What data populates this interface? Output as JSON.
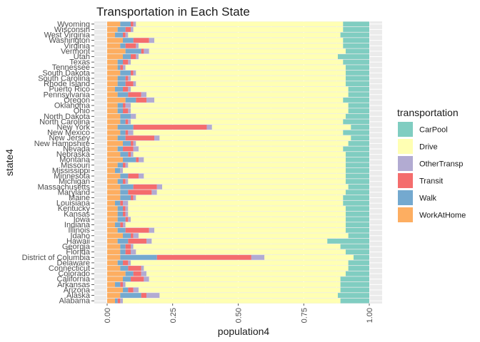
{
  "chart_data": {
    "type": "bar",
    "orientation": "horizontal",
    "stacked": "fill",
    "title": "Transportation in Each State",
    "xlabel": "population4",
    "ylabel": "state4",
    "xlim": [
      0,
      1
    ],
    "x_ticks": [
      "0.00",
      "0.25",
      "0.50",
      "0.75",
      "1.00"
    ],
    "grid": true,
    "legend_position": "right",
    "legend_title": "transportation",
    "stack_order": [
      "WorkAtHome",
      "Walk",
      "Transit",
      "OtherTransp",
      "Drive",
      "CarPool"
    ],
    "categories": [
      "Alabama",
      "Alaska",
      "Arizona",
      "Arkansas",
      "California",
      "Colorado",
      "Connecticut",
      "Delaware",
      "District of Columbia",
      "Florida",
      "Georgia",
      "Hawaii",
      "Idaho",
      "Illinois",
      "Indiana",
      "Iowa",
      "Kansas",
      "Kentucky",
      "Louisiana",
      "Maine",
      "Maryland",
      "Massachusetts",
      "Michigan",
      "Minnesota",
      "Mississippi",
      "Missouri",
      "Montana",
      "Nebraska",
      "Nevada",
      "New Hampshire",
      "New Jersey",
      "New Mexico",
      "New York",
      "North Carolina",
      "North Dakota",
      "Ohio",
      "Oklahoma",
      "Oregon",
      "Pennsylvania",
      "Puerto Rico",
      "Rhode Island",
      "South Carolina",
      "South Dakota",
      "Tennessee",
      "Texas",
      "Utah",
      "Vermont",
      "Virginia",
      "Washington",
      "West Virginia",
      "Wisconsin",
      "Wyoming"
    ],
    "series": [
      {
        "name": "WorkAtHome",
        "color": "#FDAE61",
        "values": [
          0.03,
          0.05,
          0.06,
          0.03,
          0.06,
          0.07,
          0.05,
          0.04,
          0.05,
          0.05,
          0.05,
          0.04,
          0.06,
          0.04,
          0.03,
          0.04,
          0.04,
          0.04,
          0.03,
          0.05,
          0.05,
          0.05,
          0.04,
          0.05,
          0.03,
          0.04,
          0.06,
          0.05,
          0.04,
          0.06,
          0.04,
          0.05,
          0.04,
          0.05,
          0.05,
          0.04,
          0.04,
          0.07,
          0.04,
          0.03,
          0.04,
          0.04,
          0.05,
          0.04,
          0.04,
          0.06,
          0.07,
          0.05,
          0.06,
          0.03,
          0.04,
          0.05
        ]
      },
      {
        "name": "Walk",
        "color": "#74A9CF",
        "values": [
          0.01,
          0.08,
          0.02,
          0.02,
          0.03,
          0.03,
          0.03,
          0.02,
          0.14,
          0.02,
          0.02,
          0.04,
          0.03,
          0.03,
          0.02,
          0.03,
          0.02,
          0.02,
          0.02,
          0.04,
          0.03,
          0.05,
          0.02,
          0.03,
          0.02,
          0.02,
          0.05,
          0.03,
          0.02,
          0.03,
          0.03,
          0.02,
          0.06,
          0.02,
          0.04,
          0.02,
          0.02,
          0.04,
          0.04,
          0.03,
          0.03,
          0.03,
          0.04,
          0.01,
          0.02,
          0.03,
          0.06,
          0.02,
          0.04,
          0.03,
          0.03,
          0.04
        ]
      },
      {
        "name": "Transit",
        "color": "#F46D6D",
        "values": [
          0.01,
          0.02,
          0.02,
          0.01,
          0.05,
          0.03,
          0.05,
          0.02,
          0.36,
          0.02,
          0.02,
          0.07,
          0.01,
          0.09,
          0.01,
          0.01,
          0.01,
          0.01,
          0.01,
          0.01,
          0.09,
          0.09,
          0.01,
          0.04,
          0.0,
          0.01,
          0.01,
          0.01,
          0.04,
          0.01,
          0.11,
          0.01,
          0.28,
          0.01,
          0.0,
          0.02,
          0.01,
          0.04,
          0.05,
          0.02,
          0.03,
          0.01,
          0.01,
          0.01,
          0.02,
          0.02,
          0.01,
          0.04,
          0.06,
          0.01,
          0.02,
          0.01
        ]
      },
      {
        "name": "OtherTransp",
        "color": "#B2ABD2",
        "values": [
          0.01,
          0.05,
          0.02,
          0.01,
          0.02,
          0.02,
          0.01,
          0.01,
          0.05,
          0.02,
          0.01,
          0.02,
          0.02,
          0.02,
          0.01,
          0.01,
          0.01,
          0.01,
          0.02,
          0.01,
          0.02,
          0.02,
          0.01,
          0.02,
          0.01,
          0.01,
          0.02,
          0.01,
          0.02,
          0.01,
          0.02,
          0.02,
          0.02,
          0.01,
          0.02,
          0.01,
          0.02,
          0.03,
          0.02,
          0.01,
          0.01,
          0.01,
          0.01,
          0.01,
          0.01,
          0.01,
          0.02,
          0.01,
          0.02,
          0.01,
          0.01,
          0.01
        ]
      },
      {
        "name": "Drive",
        "color": "#FFFFB3",
        "values": [
          0.83,
          0.68,
          0.77,
          0.82,
          0.73,
          0.76,
          0.78,
          0.83,
          0.34,
          0.8,
          0.79,
          0.67,
          0.8,
          0.73,
          0.84,
          0.82,
          0.83,
          0.83,
          0.82,
          0.79,
          0.72,
          0.71,
          0.83,
          0.77,
          0.85,
          0.83,
          0.77,
          0.81,
          0.78,
          0.81,
          0.73,
          0.8,
          0.53,
          0.81,
          0.8,
          0.83,
          0.83,
          0.72,
          0.77,
          0.83,
          0.8,
          0.82,
          0.8,
          0.84,
          0.81,
          0.76,
          0.75,
          0.78,
          0.72,
          0.81,
          0.8,
          0.79
        ]
      },
      {
        "name": "CarPool",
        "color": "#80CDC1",
        "values": [
          0.11,
          0.12,
          0.11,
          0.11,
          0.11,
          0.09,
          0.08,
          0.08,
          0.06,
          0.09,
          0.11,
          0.16,
          0.08,
          0.09,
          0.09,
          0.09,
          0.09,
          0.09,
          0.1,
          0.1,
          0.09,
          0.08,
          0.09,
          0.09,
          0.09,
          0.09,
          0.09,
          0.09,
          0.1,
          0.08,
          0.07,
          0.1,
          0.07,
          0.1,
          0.09,
          0.08,
          0.08,
          0.1,
          0.08,
          0.08,
          0.09,
          0.09,
          0.09,
          0.09,
          0.1,
          0.12,
          0.09,
          0.1,
          0.1,
          0.11,
          0.1,
          0.1
        ]
      }
    ]
  }
}
